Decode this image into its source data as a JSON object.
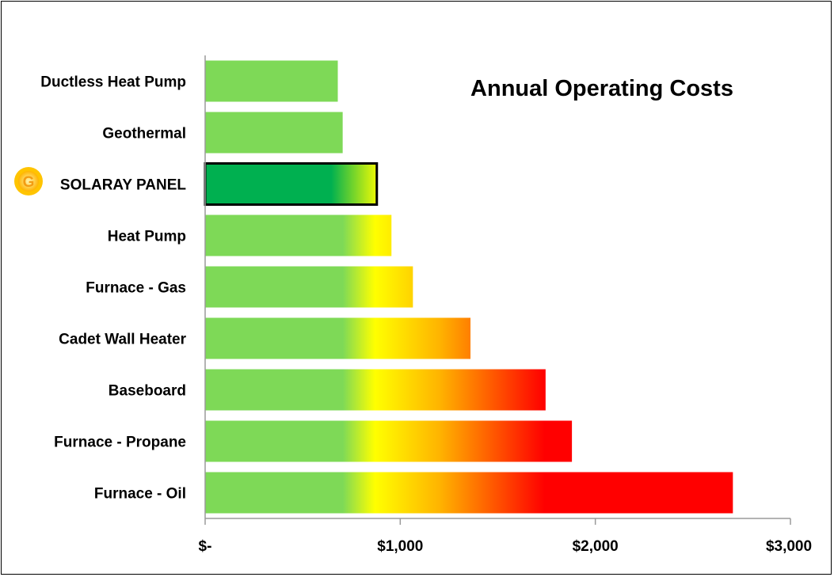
{
  "chart_data": {
    "type": "bar",
    "orientation": "horizontal",
    "title": "Annual Operating Costs",
    "categories": [
      "Ductless Heat Pump",
      "Geothermal",
      "SOLARAY PANEL",
      "Heat Pump",
      "Furnace - Gas",
      "Cadet Wall Heater",
      "Baseboard",
      "Furnace - Propane",
      "Furnace - Oil"
    ],
    "values": [
      680,
      705,
      880,
      955,
      1065,
      1360,
      1745,
      1880,
      2705
    ],
    "highlighted_category": "SOLARAY PANEL",
    "highlight_icon": "sun-logo-icon",
    "xlim": [
      0,
      3000
    ],
    "xticks": [
      0,
      1000,
      2000,
      3000
    ],
    "xtick_labels": [
      "$-",
      "$1,000",
      "$2,000",
      "$3,000"
    ],
    "xlabel": "",
    "ylabel": "",
    "grid": false,
    "color_scale": {
      "green": "#7ed957",
      "yellow": "#ffff00",
      "orange": "#ffb400",
      "red": "#ff0000",
      "highlight_fill": "#00b050",
      "highlight_border": "#000000"
    }
  }
}
